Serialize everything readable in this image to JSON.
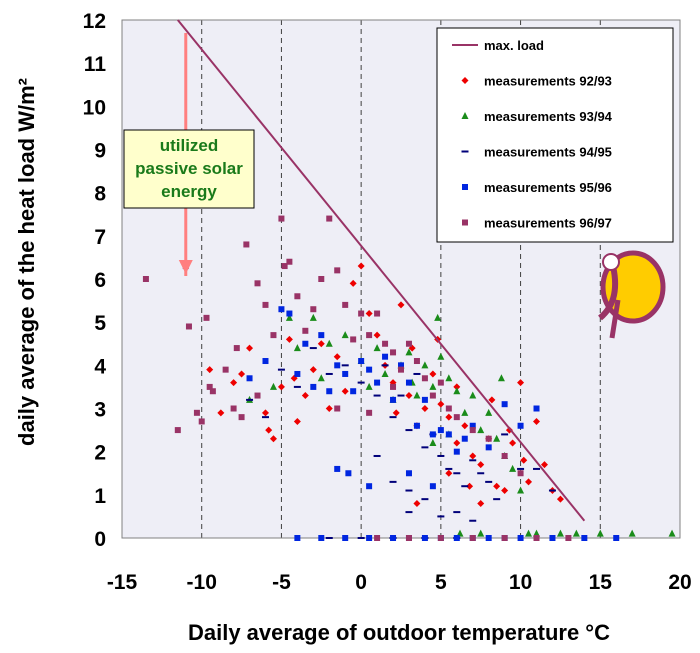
{
  "chart_data": {
    "type": "scatter",
    "xlabel": "Daily average of outdoor temperature °C",
    "ylabel": "daily average of the heat load W/m²",
    "xlim": [
      -15,
      20
    ],
    "ylim": [
      0,
      12
    ],
    "x_ticks": [
      "-15",
      "-10",
      "-5",
      "0",
      "5",
      "10",
      "15",
      "20"
    ],
    "y_ticks": [
      "0",
      "1",
      "2",
      "3",
      "4",
      "5",
      "6",
      "7",
      "8",
      "9",
      "10",
      "11",
      "12"
    ],
    "grid": "vertical dashed",
    "legend_position": "top-right",
    "annotation": {
      "lines": [
        "utilized",
        "passive solar",
        "energy"
      ],
      "arrow_from": [
        -11,
        11.7
      ],
      "arrow_to": [
        -11,
        6.3
      ]
    },
    "max_load_line": {
      "name": "max. load",
      "color": "#993366",
      "points": [
        [
          -11.5,
          12
        ],
        [
          14,
          0.4
        ]
      ]
    },
    "series": [
      {
        "name": "measurements 92/93",
        "color": "#ee0000",
        "marker": "diamond",
        "points": [
          [
            -9.5,
            3.9
          ],
          [
            -8.8,
            2.9
          ],
          [
            -8,
            3.6
          ],
          [
            -7.5,
            3.8
          ],
          [
            -7,
            4.4
          ],
          [
            -6,
            2.9
          ],
          [
            -5.8,
            2.5
          ],
          [
            -5.5,
            2.3
          ],
          [
            -5,
            3.5
          ],
          [
            -4.5,
            4.6
          ],
          [
            -4.2,
            3.7
          ],
          [
            -4,
            2.7
          ],
          [
            -3.5,
            3.3
          ],
          [
            -3,
            3.9
          ],
          [
            -2.5,
            4.5
          ],
          [
            -2,
            3
          ],
          [
            -1.5,
            4.2
          ],
          [
            -1,
            3.4
          ],
          [
            -0.5,
            5.9
          ],
          [
            0,
            6.3
          ],
          [
            0.5,
            5.2
          ],
          [
            1,
            4.7
          ],
          [
            1.5,
            4
          ],
          [
            2,
            3.6
          ],
          [
            2.5,
            5.4
          ],
          [
            3,
            3.3
          ],
          [
            3.2,
            4.4
          ],
          [
            3.5,
            2.6
          ],
          [
            4,
            3
          ],
          [
            4.5,
            3.8
          ],
          [
            5,
            3.1
          ],
          [
            5.5,
            2.8
          ],
          [
            6,
            2.2
          ],
          [
            6.5,
            2.6
          ],
          [
            7,
            1.9
          ],
          [
            7.5,
            1.7
          ],
          [
            8,
            2.3
          ],
          [
            8.5,
            1.2
          ],
          [
            9,
            1.1
          ],
          [
            9.5,
            2.2
          ],
          [
            10,
            3.6
          ],
          [
            10.2,
            1.8
          ],
          [
            10.5,
            1.3
          ],
          [
            11,
            2.7
          ],
          [
            11.5,
            1.7
          ],
          [
            12,
            1.1
          ],
          [
            12.5,
            0.9
          ],
          [
            3.5,
            0.8
          ],
          [
            5.5,
            1.5
          ],
          [
            7.5,
            0.8
          ],
          [
            6,
            3.5
          ],
          [
            4.8,
            4.6
          ],
          [
            2.2,
            2.9
          ],
          [
            8.2,
            3.2
          ],
          [
            9.3,
            2.5
          ],
          [
            6.8,
            1.2
          ]
        ]
      },
      {
        "name": "measurements 93/94",
        "color": "#1a8c1a",
        "marker": "triangle",
        "points": [
          [
            -7,
            3.2
          ],
          [
            -5.5,
            3.5
          ],
          [
            -4.5,
            5.1
          ],
          [
            -4,
            4.4
          ],
          [
            -3,
            5.1
          ],
          [
            -2.5,
            3.7
          ],
          [
            -2,
            4.5
          ],
          [
            -1,
            4.7
          ],
          [
            0,
            4.1
          ],
          [
            0.5,
            3.5
          ],
          [
            1,
            4.4
          ],
          [
            1.5,
            3.8
          ],
          [
            2,
            3.2
          ],
          [
            2.5,
            4
          ],
          [
            3,
            4.3
          ],
          [
            3.5,
            3.3
          ],
          [
            4,
            4
          ],
          [
            4.5,
            3.5
          ],
          [
            5,
            4.2
          ],
          [
            5.5,
            3.7
          ],
          [
            6,
            3.4
          ],
          [
            6.5,
            2.9
          ],
          [
            7,
            3.3
          ],
          [
            7.5,
            2.5
          ],
          [
            8,
            2.9
          ],
          [
            8.5,
            2.3
          ],
          [
            9,
            1.9
          ],
          [
            9.5,
            1.6
          ],
          [
            10,
            1.1
          ],
          [
            4.5,
            2.2
          ],
          [
            5.5,
            2.4
          ],
          [
            3.2,
            3.6
          ],
          [
            6.2,
            0.1
          ],
          [
            7.5,
            0.1
          ],
          [
            10.5,
            0.1
          ],
          [
            12.5,
            0.1
          ],
          [
            15,
            0.1
          ],
          [
            17,
            0.1
          ],
          [
            19.5,
            0.1
          ],
          [
            11,
            0.1
          ],
          [
            13.5,
            0.1
          ],
          [
            8.8,
            3.7
          ],
          [
            4.8,
            5.1
          ]
        ]
      },
      {
        "name": "measurements 94/95",
        "color": "#00007a",
        "marker": "dash",
        "points": [
          [
            -7,
            3.2
          ],
          [
            -6,
            2.8
          ],
          [
            -5,
            3.9
          ],
          [
            -4,
            3.5
          ],
          [
            -3,
            4.4
          ],
          [
            -2,
            3.8
          ],
          [
            -1,
            4
          ],
          [
            0,
            3.6
          ],
          [
            1,
            3.3
          ],
          [
            1.5,
            4
          ],
          [
            2,
            2.8
          ],
          [
            2.5,
            3.3
          ],
          [
            3,
            2.5
          ],
          [
            3.5,
            3.8
          ],
          [
            4,
            2.1
          ],
          [
            4.5,
            2.4
          ],
          [
            5,
            1.9
          ],
          [
            5.5,
            1.6
          ],
          [
            6,
            1.5
          ],
          [
            6.5,
            1.2
          ],
          [
            7,
            1.8
          ],
          [
            7.5,
            1.5
          ],
          [
            8,
            1.3
          ],
          [
            8.5,
            0.9
          ],
          [
            9,
            2.4
          ],
          [
            10,
            1.6
          ],
          [
            11,
            1.6
          ],
          [
            12,
            1.1
          ],
          [
            1,
            1.9
          ],
          [
            2,
            1.3
          ],
          [
            3,
            1.1
          ],
          [
            4,
            0.9
          ],
          [
            5,
            0.5
          ],
          [
            6,
            0.6
          ],
          [
            7,
            0.4
          ],
          [
            3,
            0.6
          ],
          [
            -2,
            0
          ],
          [
            0,
            0
          ],
          [
            2,
            0
          ],
          [
            4,
            0
          ],
          [
            6,
            0
          ]
        ]
      },
      {
        "name": "measurements 95/96",
        "color": "#0026e0",
        "marker": "square",
        "points": [
          [
            -7,
            3.7
          ],
          [
            -6,
            4.1
          ],
          [
            -5,
            5.3
          ],
          [
            -4.5,
            5.2
          ],
          [
            -4,
            3.8
          ],
          [
            -3.5,
            4.5
          ],
          [
            -3,
            3.5
          ],
          [
            -2.5,
            4.7
          ],
          [
            -2,
            3.4
          ],
          [
            -1.5,
            4
          ],
          [
            -1,
            3.8
          ],
          [
            -0.5,
            3.4
          ],
          [
            0,
            4.1
          ],
          [
            0.5,
            3.9
          ],
          [
            1,
            3.6
          ],
          [
            1.5,
            4.2
          ],
          [
            2,
            3.2
          ],
          [
            2.5,
            4
          ],
          [
            3,
            3.6
          ],
          [
            3.5,
            2.6
          ],
          [
            4,
            3.2
          ],
          [
            4.5,
            2.4
          ],
          [
            5,
            2.5
          ],
          [
            5.5,
            2.4
          ],
          [
            6,
            2
          ],
          [
            6.5,
            2.3
          ],
          [
            7,
            2.6
          ],
          [
            8,
            2.1
          ],
          [
            9,
            3.1
          ],
          [
            10,
            2.6
          ],
          [
            11,
            3
          ],
          [
            -1.5,
            1.6
          ],
          [
            -0.8,
            1.5
          ],
          [
            0.5,
            1.2
          ],
          [
            3,
            1.5
          ],
          [
            4.5,
            1.2
          ],
          [
            -4,
            0
          ],
          [
            -2.5,
            0
          ],
          [
            -1,
            0
          ],
          [
            0.5,
            0
          ],
          [
            2,
            0
          ],
          [
            3,
            0
          ],
          [
            4,
            0
          ],
          [
            5,
            0
          ],
          [
            6,
            0
          ],
          [
            7,
            0
          ],
          [
            8,
            0
          ],
          [
            9,
            0
          ],
          [
            10,
            0
          ],
          [
            12,
            0
          ],
          [
            14,
            0
          ],
          [
            16,
            0
          ]
        ]
      },
      {
        "name": "measurements 96/97",
        "color": "#993366",
        "marker": "square",
        "points": [
          [
            -13.5,
            6
          ],
          [
            -11,
            6.3
          ],
          [
            -10.8,
            4.9
          ],
          [
            -10.3,
            2.9
          ],
          [
            -10,
            2.7
          ],
          [
            -11.5,
            2.5
          ],
          [
            -9.5,
            3.5
          ],
          [
            -9.3,
            3.4
          ],
          [
            -9.7,
            5.1
          ],
          [
            -8.5,
            3.9
          ],
          [
            -7.8,
            4.4
          ],
          [
            -7.2,
            6.8
          ],
          [
            -6.5,
            5.9
          ],
          [
            -6,
            5.4
          ],
          [
            -5.5,
            4.7
          ],
          [
            -5,
            7.4
          ],
          [
            -4.8,
            6.3
          ],
          [
            -4.5,
            6.4
          ],
          [
            -4,
            5.6
          ],
          [
            -3.5,
            4.8
          ],
          [
            -3,
            5.3
          ],
          [
            -2.5,
            6
          ],
          [
            -2,
            7.4
          ],
          [
            -1.5,
            6.2
          ],
          [
            -1,
            5.4
          ],
          [
            -0.5,
            4.6
          ],
          [
            0,
            5.2
          ],
          [
            0.5,
            4.7
          ],
          [
            1,
            5.2
          ],
          [
            1.5,
            4.5
          ],
          [
            2,
            4.3
          ],
          [
            2.5,
            3.9
          ],
          [
            3,
            4.5
          ],
          [
            3.5,
            4.1
          ],
          [
            4,
            3.7
          ],
          [
            4.5,
            3.3
          ],
          [
            5,
            3.6
          ],
          [
            5.5,
            3
          ],
          [
            6,
            2.8
          ],
          [
            7,
            2.5
          ],
          [
            8,
            2.3
          ],
          [
            9,
            1.9
          ],
          [
            10,
            1.5
          ],
          [
            -1.5,
            3
          ],
          [
            0.5,
            2.9
          ],
          [
            2,
            3.5
          ],
          [
            -8,
            3
          ],
          [
            -7.5,
            2.8
          ],
          [
            -6.5,
            3.3
          ],
          [
            1,
            0
          ],
          [
            3,
            0
          ],
          [
            5,
            0
          ],
          [
            7,
            0
          ],
          [
            9,
            0
          ],
          [
            11,
            0
          ],
          [
            13,
            0
          ]
        ]
      }
    ]
  }
}
